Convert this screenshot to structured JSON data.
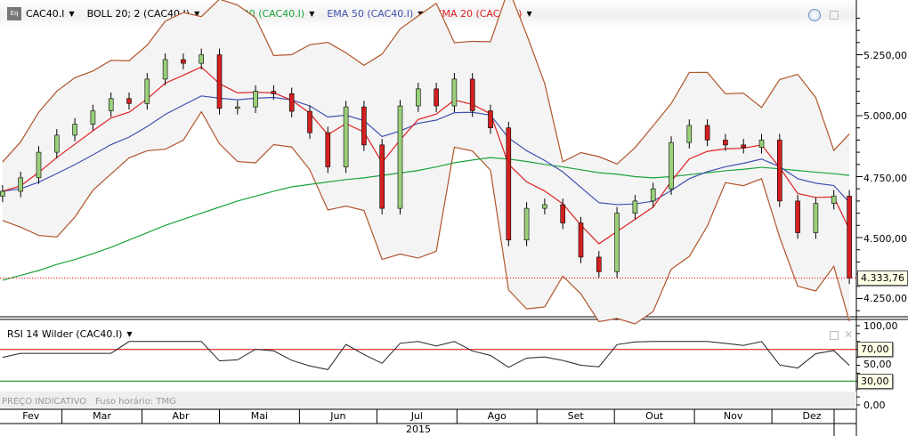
{
  "legend": {
    "symbol": "CAC40.I",
    "boll": "BOLL 20; 2 (CAC40.I)",
    "ema200": "EMA 200 (CAC40.I)",
    "ema50": "EMA 50 (CAC40.I)",
    "ema20": "EMA 20 (CAC40.I)"
  },
  "rsi_label": "RSI 14 Wilder (CAC40.I)",
  "footer": {
    "price_note": "PREÇO INDICATIVO",
    "timezone": "Fuso horário: TMG"
  },
  "colors": {
    "up": "#9ad07a",
    "down": "#d42020",
    "ema200": "#1aa33a",
    "ema50": "#4050b0",
    "ema20": "#e02020",
    "boll": "#b0552a",
    "band_fill": "#f4f4f4",
    "rsi_upper": "#d00000",
    "rsi_lower": "#008000"
  },
  "chart_data": {
    "type": "candlestick",
    "x_axis": {
      "months": [
        "Fev",
        "Mar",
        "Abr",
        "Mai",
        "Jun",
        "Jul",
        "Ago",
        "Set",
        "Out",
        "Nov",
        "Dez"
      ],
      "year": "2015"
    },
    "y_axis": {
      "ticks": [
        "5.250,00",
        "5.000,00",
        "4.750,00",
        "4.500,00",
        "4.250,00"
      ],
      "range": [
        4190,
        5420
      ]
    },
    "last_price": "4.333,76",
    "dates": [
      "2015-02-06",
      "2015-02-13",
      "2015-02-20",
      "2015-02-27",
      "2015-03-06",
      "2015-03-13",
      "2015-03-20",
      "2015-03-27",
      "2015-04-03",
      "2015-04-10",
      "2015-04-17",
      "2015-04-24",
      "2015-05-01",
      "2015-05-08",
      "2015-05-15",
      "2015-05-22",
      "2015-05-29",
      "2015-06-05",
      "2015-06-12",
      "2015-06-19",
      "2015-06-26",
      "2015-07-03",
      "2015-07-10",
      "2015-07-17",
      "2015-07-24",
      "2015-07-31",
      "2015-08-07",
      "2015-08-14",
      "2015-08-21",
      "2015-08-28",
      "2015-09-04",
      "2015-09-11",
      "2015-09-18",
      "2015-09-25",
      "2015-10-02",
      "2015-10-09",
      "2015-10-16",
      "2015-10-23",
      "2015-10-30",
      "2015-11-06",
      "2015-11-13",
      "2015-11-20",
      "2015-11-27",
      "2015-12-04",
      "2015-12-11",
      "2015-12-18",
      "2015-12-25",
      "2015-12-31"
    ],
    "close": [
      4690,
      4745,
      4850,
      4920,
      4965,
      5020,
      5070,
      5050,
      5150,
      5230,
      5215,
      5250,
      5030,
      5036,
      5100,
      5090,
      5018,
      4930,
      4790,
      5036,
      4880,
      4620,
      5040,
      5110,
      5040,
      5150,
      5020,
      4950,
      4490,
      4620,
      4635,
      4560,
      4420,
      4360,
      4600,
      4650,
      4700,
      4890,
      4960,
      4900,
      4880,
      4870,
      4900,
      4650,
      4520,
      4640,
      4670,
      4334
    ],
    "ema200": [
      4325,
      4345,
      4365,
      4390,
      4410,
      4434,
      4460,
      4490,
      4520,
      4550,
      4575,
      4600,
      4625,
      4650,
      4670,
      4690,
      4708,
      4718,
      4728,
      4738,
      4745,
      4755,
      4765,
      4775,
      4790,
      4807,
      4818,
      4828,
      4822,
      4812,
      4800,
      4790,
      4778,
      4766,
      4760,
      4750,
      4745,
      4750,
      4758,
      4766,
      4774,
      4780,
      4788,
      4782,
      4775,
      4768,
      4762,
      4755
    ]
  },
  "rsi": {
    "ticks": [
      "100,00",
      "50,00",
      "0,00"
    ],
    "levels": [
      "70,00",
      "30,00"
    ]
  }
}
